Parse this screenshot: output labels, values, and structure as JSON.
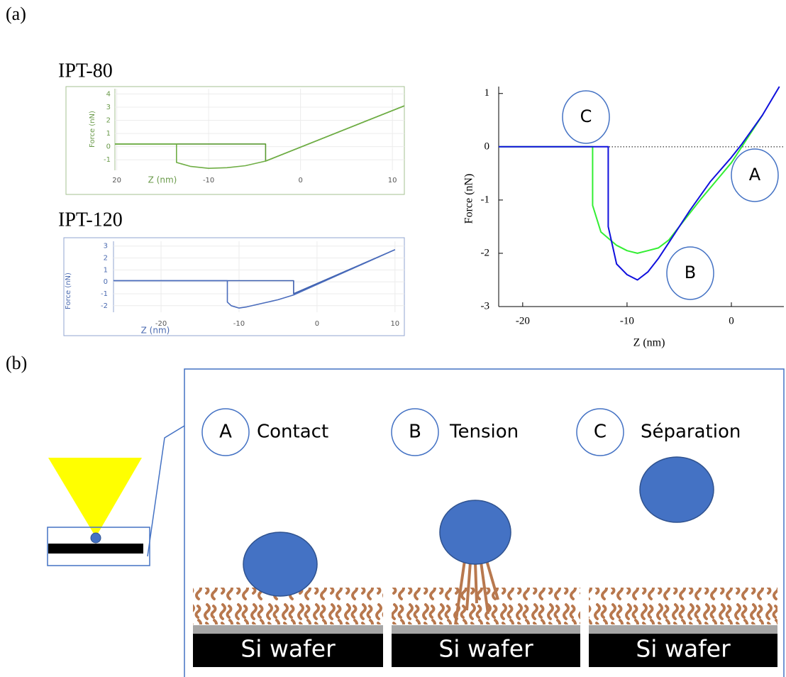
{
  "labels": {
    "a": "(a)",
    "b": "(b)"
  },
  "chart_data": [
    {
      "type": "line",
      "title": "IPT-80",
      "x_label": "Z (nm)",
      "y_label": "Force (nN)",
      "xlim": [
        -20.2,
        11.3
      ],
      "xticks": [
        {
          "value": -20,
          "label": "20"
        },
        -10,
        0,
        10
      ],
      "ylim": [
        -1.8,
        4.4
      ],
      "yticks": [
        -1,
        0,
        1,
        2,
        3,
        4
      ],
      "grid": true,
      "series": [
        {
          "color": "#5a9a32",
          "x": [
            -20.2,
            -3.8,
            -3.8,
            11.3
          ],
          "values": [
            0.2,
            0.2,
            -1.1,
            3.1
          ]
        },
        {
          "color": "#6fae45",
          "x": [
            11.3,
            -3.8,
            -6,
            -8,
            -10,
            -12,
            -13.5,
            -13.5,
            -20.2
          ],
          "values": [
            3.1,
            -1.1,
            -1.45,
            -1.6,
            -1.65,
            -1.5,
            -1.2,
            0.2,
            0.2
          ]
        }
      ]
    },
    {
      "type": "line",
      "title": "IPT-120",
      "x_label": "Z (nm)",
      "y_label": "Force (nN)",
      "xlim": [
        -26.1,
        11.2
      ],
      "xticks": [
        -20,
        -10,
        0,
        10
      ],
      "ylim": [
        -2.55,
        3.4
      ],
      "yticks": [
        -2,
        -1,
        0,
        1,
        2,
        3
      ],
      "grid": true,
      "series": [
        {
          "color": "#3d5fae",
          "x": [
            -26.1,
            -3,
            -3,
            10
          ],
          "values": [
            0.1,
            0.1,
            -1,
            2.7
          ]
        },
        {
          "color": "#4a6cbc",
          "x": [
            10,
            -3,
            -5,
            -7,
            -9,
            -10,
            -11,
            -11.5,
            -11.5,
            -26.1
          ],
          "values": [
            2.7,
            -1.1,
            -1.5,
            -1.8,
            -2.1,
            -2.2,
            -2.0,
            -1.7,
            0.1,
            0.1
          ]
        }
      ]
    },
    {
      "type": "line",
      "x_label": "Z (nm)",
      "y_label": "Force (nN)",
      "xlim": [
        -22.3,
        5.03
      ],
      "xticks": [
        -20,
        -10,
        0
      ],
      "ylim": [
        -3,
        1.13
      ],
      "yticks": [
        -3,
        -2,
        -1,
        0,
        1
      ],
      "hline": 0,
      "annotations": [
        "C",
        "A",
        "B"
      ],
      "series": [
        {
          "color": "#33ee33",
          "x": [
            -22.3,
            -13.3,
            -13.3,
            -12.5,
            -11,
            -10,
            -9,
            -8,
            -7,
            -6,
            -5,
            -3,
            0,
            1,
            3
          ],
          "values": [
            0,
            0,
            -1.1,
            -1.6,
            -1.85,
            -1.95,
            -2.0,
            -1.95,
            -1.9,
            -1.75,
            -1.5,
            -1.0,
            -0.3,
            0,
            0.6
          ]
        },
        {
          "color": "#1010dd",
          "x": [
            -22.3,
            -11.8,
            -11.8,
            -11,
            -10,
            -9,
            -8,
            -7,
            -6,
            -4,
            -2,
            0,
            1,
            3,
            4.6
          ],
          "values": [
            0,
            0,
            -1.5,
            -2.2,
            -2.4,
            -2.5,
            -2.35,
            -2.1,
            -1.8,
            -1.2,
            -0.65,
            -0.2,
            0.05,
            0.6,
            1.13
          ]
        }
      ]
    }
  ],
  "diagram": {
    "stages": [
      {
        "marker": "A",
        "label": "Contact"
      },
      {
        "marker": "B",
        "label": "Tension"
      },
      {
        "marker": "C",
        "label": "Séparation"
      }
    ],
    "substrate": "Si wafer"
  }
}
